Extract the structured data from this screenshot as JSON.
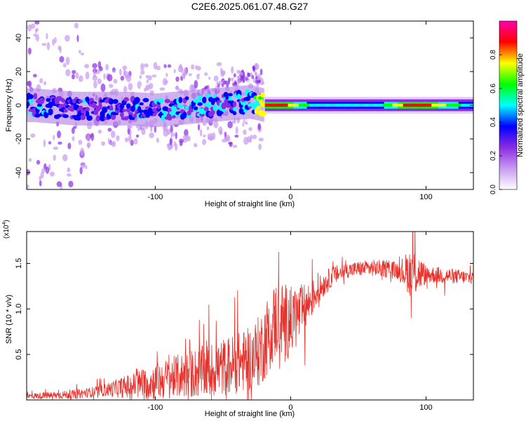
{
  "title": "C2E6.2025.061.07.48.G27",
  "chart_data": [
    {
      "type": "heatmap",
      "title": "C2E6.2025.061.07.48.G27",
      "xlabel": "Height of straight line (km)",
      "ylabel": "Frequency (Hz)",
      "xlim": [
        -195,
        135
      ],
      "ylim": [
        -50,
        50
      ],
      "xticks": [
        -100,
        0,
        100
      ],
      "xtick_labels": [
        "-100",
        "0",
        "100"
      ],
      "yticks": [
        -40,
        -20,
        0,
        20,
        40
      ],
      "ytick_labels": [
        "-40",
        "-20",
        "0",
        "20",
        "40"
      ],
      "colorbar": {
        "label": "Normalized spectral amplitude",
        "range": [
          0,
          1
        ],
        "ticks": [
          0.0,
          0.2,
          0.4,
          0.6,
          0.8
        ],
        "tick_labels": [
          "0.0",
          "0.2",
          "0.4",
          "0.6",
          "0.8"
        ],
        "colors": [
          "#ffffff",
          "#c89af0",
          "#8a2be2",
          "#0000ff",
          "#00ffff",
          "#00ff00",
          "#ffff00",
          "#ff0000",
          "#ff00aa"
        ]
      },
      "ridge": {
        "description_points": [
          {
            "x": -190,
            "f": 0,
            "amp": 0.35
          },
          {
            "x": -160,
            "f": -2,
            "amp": 0.3
          },
          {
            "x": -120,
            "f": -2,
            "amp": 0.3
          },
          {
            "x": -100,
            "f": -3,
            "amp": 0.35
          },
          {
            "x": -60,
            "f": 0,
            "amp": 0.35
          },
          {
            "x": -30,
            "f": 2,
            "amp": 0.4
          },
          {
            "x": -20,
            "f": 0,
            "amp": 0.85
          },
          {
            "x": -8,
            "f": 0,
            "amp": 0.9
          },
          {
            "x": 20,
            "f": 0,
            "amp": 0.45
          },
          {
            "x": 60,
            "f": 0,
            "amp": 0.45
          },
          {
            "x": 85,
            "f": 0,
            "amp": 0.85
          },
          {
            "x": 100,
            "f": 0,
            "amp": 0.85
          },
          {
            "x": 135,
            "f": 0,
            "amp": 0.45
          }
        ]
      }
    },
    {
      "type": "line",
      "xlabel": "Height of straight line (km)",
      "ylabel": "SNR (10 * v/v)",
      "y_multiplier": "(x10",
      "y_multiplier_exp": "4",
      "y_multiplier_close": ")",
      "xlim": [
        -195,
        135
      ],
      "ylim": [
        0,
        1.85
      ],
      "xticks": [
        -100,
        0,
        100
      ],
      "xtick_labels": [
        "-100",
        "0",
        "100"
      ],
      "yticks": [
        0.5,
        1.0,
        1.5
      ],
      "ytick_labels": [
        "0.5",
        "1.0",
        "1.5"
      ],
      "color": "#e8302a",
      "trend": {
        "x": [
          -195,
          -160,
          -140,
          -120,
          -100,
          -80,
          -60,
          -40,
          -30,
          -22,
          -16,
          -10,
          0,
          10,
          20,
          30,
          40,
          50,
          60,
          70,
          80,
          90,
          100,
          110,
          120,
          135
        ],
        "y": [
          0.04,
          0.06,
          0.1,
          0.15,
          0.2,
          0.27,
          0.32,
          0.4,
          0.45,
          0.55,
          0.75,
          0.9,
          0.85,
          1.0,
          1.2,
          1.35,
          1.42,
          1.44,
          1.45,
          1.44,
          1.42,
          1.4,
          1.38,
          1.37,
          1.36,
          1.34
        ]
      },
      "noise_amplitude": {
        "x": [
          -195,
          -140,
          -100,
          -60,
          -30,
          -15,
          0,
          20,
          40,
          80,
          90,
          100,
          135
        ],
        "y": [
          0.03,
          0.06,
          0.2,
          0.3,
          0.35,
          0.45,
          0.4,
          0.15,
          0.08,
          0.1,
          0.3,
          0.1,
          0.07
        ]
      }
    }
  ]
}
